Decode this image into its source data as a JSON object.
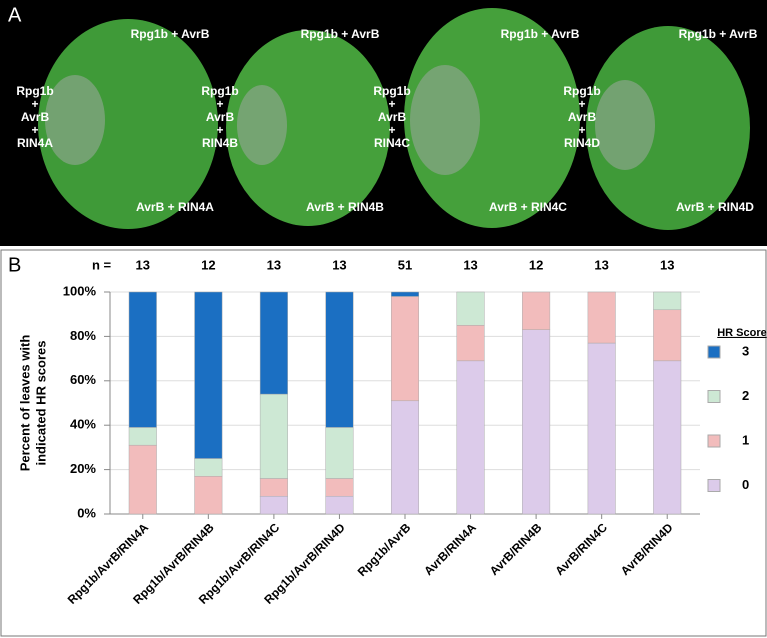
{
  "panel_a": {
    "label": "A",
    "leaves": [
      {
        "top": "Rpg1b + AvrB",
        "left": [
          "Rpg1b",
          "+",
          "AvrB",
          "+",
          "RIN4A"
        ],
        "bottom": "AvrB + RIN4A"
      },
      {
        "top": "Rpg1b + AvrB",
        "left": [
          "Rpg1b",
          "+",
          "AvrB",
          "+",
          "RIN4B"
        ],
        "bottom": "AvrB + RIN4B"
      },
      {
        "top": "Rpg1b + AvrB",
        "left": [
          "Rpg1b",
          "+",
          "AvrB",
          "+",
          "RIN4C"
        ],
        "bottom": "AvrB + RIN4C"
      },
      {
        "top": "Rpg1b + AvrB",
        "left": [
          "Rpg1b",
          "+",
          "AvrB",
          "+",
          "RIN4D"
        ],
        "bottom": "AvrB + RIN4D"
      }
    ]
  },
  "chart_data": {
    "type": "stacked_bar",
    "panel_label": "B",
    "ylabel": [
      "Percent of leaves with",
      "indicated HR scores"
    ],
    "n_label": "n =",
    "n_values": [
      13,
      12,
      13,
      13,
      51,
      13,
      12,
      13,
      13
    ],
    "categories": [
      "Rpg1b/AvrB/RIN4A",
      "Rpg1b/AvrB/RIN4B",
      "Rpg1b/AvrB/RIN4C",
      "Rpg1b/AvrB/RIN4D",
      "Rpg1b/AvrB",
      "AvrB/RIN4A",
      "AvrB/RIN4B",
      "AvrB/RIN4C",
      "AvrB/RIN4D"
    ],
    "series": [
      {
        "name": "0",
        "color": "#dccbea",
        "values": [
          0,
          0,
          8,
          8,
          51,
          69,
          83,
          77,
          69
        ]
      },
      {
        "name": "1",
        "color": "#f2bcbc",
        "values": [
          31,
          17,
          8,
          8,
          47,
          16,
          17,
          23,
          23
        ]
      },
      {
        "name": "2",
        "color": "#cde8d4",
        "values": [
          8,
          8,
          38,
          23,
          0,
          15,
          0,
          0,
          8
        ]
      },
      {
        "name": "3",
        "color": "#1b6fc2",
        "values": [
          61,
          75,
          46,
          61,
          2,
          0,
          0,
          0,
          0
        ]
      }
    ],
    "legend_title": "HR Score",
    "ylim": [
      0,
      100
    ],
    "yticks": [
      {
        "value": 0,
        "label": "0%"
      },
      {
        "value": 20,
        "label": "20%"
      },
      {
        "value": 40,
        "label": "40%"
      },
      {
        "value": 60,
        "label": "60%"
      },
      {
        "value": 80,
        "label": "80%"
      },
      {
        "value": 100,
        "label": "100%"
      }
    ]
  }
}
